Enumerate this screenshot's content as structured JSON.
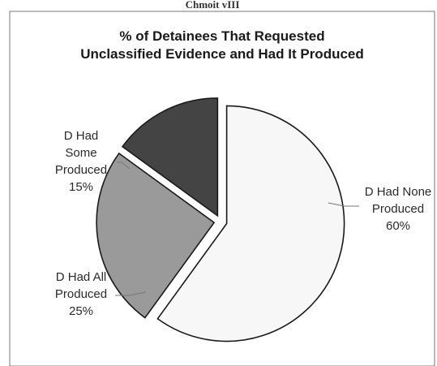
{
  "header_fragment": "Chmoit vIII",
  "chart_data": {
    "type": "pie",
    "title_lines": [
      "% of Detainees That Requested",
      "Unclassified Evidence and Had It Produced"
    ],
    "slices": [
      {
        "name": "D Had None Produced",
        "label_lines": [
          "D Had None",
          "Produced"
        ],
        "value": 60,
        "value_label": "60%",
        "color": "#f7f7f7",
        "exploded": true
      },
      {
        "name": "D Had All Produced",
        "label_lines": [
          "D Had All",
          "Produced"
        ],
        "value": 25,
        "value_label": "25%",
        "color": "#9a9a9a",
        "exploded": true
      },
      {
        "name": "D Had Some Produced",
        "label_lines": [
          "D Had",
          "Some",
          "Produced"
        ],
        "value": 15,
        "value_label": "15%",
        "color": "#444444",
        "exploded": true
      }
    ],
    "start_angle_deg": 0,
    "direction": "clockwise",
    "legend": "none",
    "data_labels": "outside-with-leader"
  }
}
